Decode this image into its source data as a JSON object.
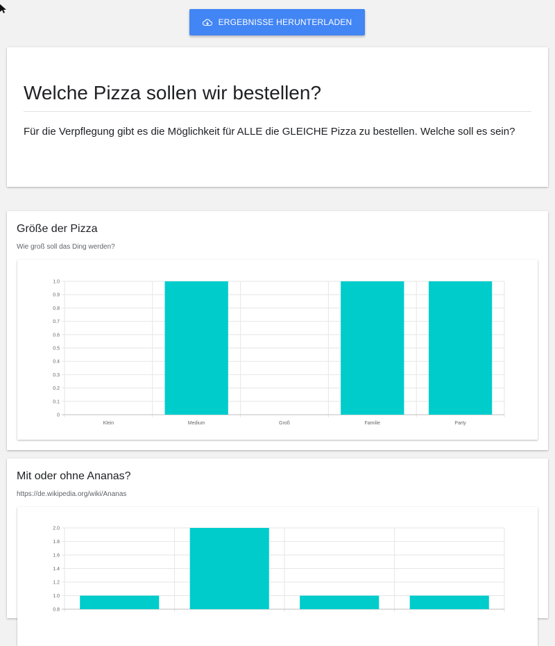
{
  "header": {
    "download_label": "ERGEBNISSE HERUNTERLADEN",
    "download_icon": "cloud-download-icon"
  },
  "intro": {
    "title": "Welche Pizza sollen wir bestellen?",
    "description": "Für die Verpflegung gibt es die Möglichkeit für ALLE die GLEICHE Pizza zu bestellen. Welche soll es sein?"
  },
  "questions": [
    {
      "title": "Größe der Pizza",
      "subtitle": "Wie groß soll das Ding werden?"
    },
    {
      "title": "Mit oder ohne Ananas?",
      "subtitle": "https://de.wikipedia.org/wiki/Ananas"
    }
  ],
  "chart_data": [
    {
      "type": "bar",
      "title": "",
      "xlabel": "",
      "ylabel": "",
      "categories": [
        "Klein",
        "Medium",
        "Groß",
        "Familie",
        "Party"
      ],
      "values": [
        0,
        1,
        0,
        1,
        1
      ],
      "ylim": [
        0,
        1.0
      ],
      "yticks": [
        "0",
        "0.1",
        "0.2",
        "0.3",
        "0.4",
        "0.5",
        "0.6",
        "0.7",
        "0.8",
        "0.9",
        "1.0"
      ],
      "grid": true,
      "bar_color": "#00cccc"
    },
    {
      "type": "bar",
      "title": "",
      "xlabel": "",
      "ylabel": "",
      "categories": [
        "",
        "",
        "",
        ""
      ],
      "values": [
        1,
        2,
        1,
        1
      ],
      "ylim": [
        0,
        2.0
      ],
      "yticks": [
        "0.8",
        "1.0",
        "1.2",
        "1.4",
        "1.6",
        "1.8",
        "2.0"
      ],
      "grid": true,
      "bar_color": "#00cccc"
    }
  ]
}
